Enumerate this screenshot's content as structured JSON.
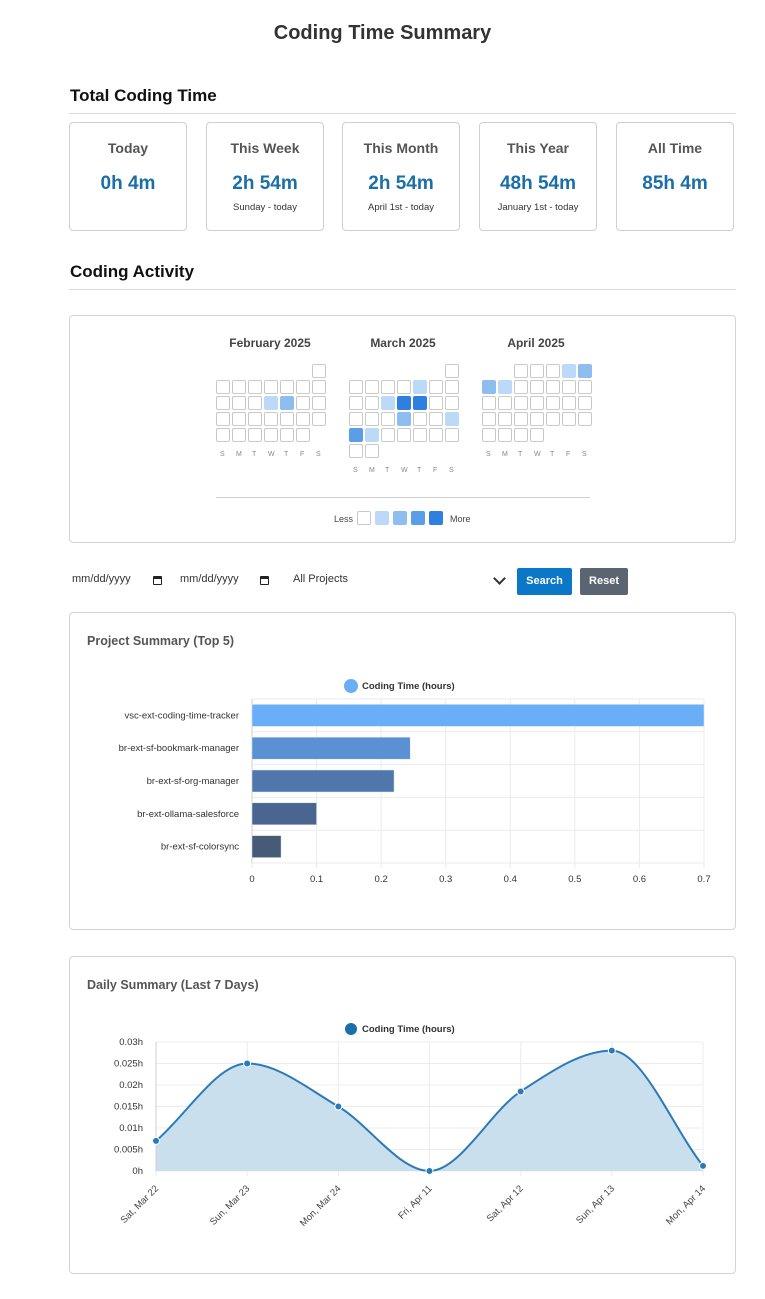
{
  "page": {
    "title": "Coding Time Summary"
  },
  "total_section": {
    "title": "Total Coding Time"
  },
  "stats": [
    {
      "label": "Today",
      "value": "0h 4m",
      "sub": ""
    },
    {
      "label": "This Week",
      "value": "2h 54m",
      "sub": "Sunday - today"
    },
    {
      "label": "This Month",
      "value": "2h 54m",
      "sub": "April 1st - today"
    },
    {
      "label": "This Year",
      "value": "48h 54m",
      "sub": "January 1st - today"
    },
    {
      "label": "All Time",
      "value": "85h 4m",
      "sub": ""
    }
  ],
  "activity_section": {
    "title": "Coding Activity"
  },
  "heatmap": {
    "day_labels": [
      "S",
      "M",
      "T",
      "W",
      "T",
      "F",
      "S"
    ],
    "legend": {
      "less": "Less",
      "more": "More"
    },
    "level_colors": [
      "#ffffff",
      "#bcd9f7",
      "#8ebdf0",
      "#5a9de8",
      "#2e7fe0"
    ],
    "months": [
      {
        "name": "February 2025",
        "first_weekday": 6,
        "days": 28,
        "levels": {
          "12": 1,
          "13": 2
        }
      },
      {
        "name": "March 2025",
        "first_weekday": 6,
        "days": 31,
        "levels": {
          "6": 1,
          "11": 1,
          "12": 4,
          "13": 4,
          "19": 2,
          "22": 1,
          "23": 3,
          "24": 1
        }
      },
      {
        "name": "April 2025",
        "first_weekday": 2,
        "days": 30,
        "levels": {
          "4": 1,
          "5": 2,
          "6": 2,
          "7": 1
        }
      }
    ]
  },
  "filters": {
    "date_from_placeholder": "mm/dd/yyyy",
    "date_to_placeholder": "mm/dd/yyyy",
    "project_select": "All Projects",
    "search_label": "Search",
    "reset_label": "Reset"
  },
  "colors": {
    "accent": "#1a6fa8",
    "search_button": "#0b77c9",
    "reset_button": "#5b6572"
  },
  "chart_data": [
    {
      "type": "bar",
      "orientation": "horizontal",
      "title": "Project Summary (Top 5)",
      "legend": "Coding Time (hours)",
      "categories": [
        "vsc-ext-coding-time-tracker",
        "br-ext-sf-bookmark-manager",
        "br-ext-sf-org-manager",
        "br-ext-ollama-salesforce",
        "br-ext-sf-colorsync"
      ],
      "values": [
        0.7,
        0.245,
        0.22,
        0.1,
        0.045
      ],
      "colors": [
        "#6aaef7",
        "#5a90d4",
        "#4f77ac",
        "#4a6690",
        "#475a76"
      ],
      "xlim": [
        0,
        0.7
      ],
      "xticks": [
        "0",
        "0.1",
        "0.2",
        "0.3",
        "0.4",
        "0.5",
        "0.6",
        "0.7"
      ]
    },
    {
      "type": "area",
      "title": "Daily Summary (Last 7 Days)",
      "legend": "Coding Time (hours)",
      "x": [
        "Sat, Mar 22",
        "Sun, Mar 23",
        "Mon, Mar 24",
        "Fri, Apr 11",
        "Sat, Apr 12",
        "Sun, Apr 13",
        "Mon, Apr 14"
      ],
      "values": [
        0.007,
        0.025,
        0.015,
        0.0,
        0.0185,
        0.028,
        0.0012
      ],
      "ylim": [
        0,
        0.03
      ],
      "yticks": [
        "0h",
        "0.005h",
        "0.01h",
        "0.015h",
        "0.02h",
        "0.025h",
        "0.03h"
      ],
      "line_color": "#2a7ab8",
      "fill_color": "#c9dfee"
    }
  ]
}
